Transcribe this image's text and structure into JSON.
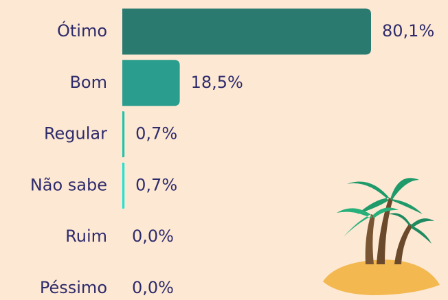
{
  "chart_data": {
    "type": "hbar",
    "categories": [
      "Ótimo",
      "Bom",
      "Regular",
      "Não sabe",
      "Ruim",
      "Péssimo"
    ],
    "values": [
      80.1,
      18.5,
      0.7,
      0.7,
      0.0,
      0.0
    ],
    "value_labels": [
      "80,1%",
      "18,5%",
      "0,7%",
      "0,7%",
      "0,0%",
      "0,0%"
    ],
    "colors": [
      "#2a7a70",
      "#2a9d8f",
      "#22c3ad",
      "#1ee3d2",
      "#1ee3d2",
      "#1ee3d2"
    ]
  }
}
